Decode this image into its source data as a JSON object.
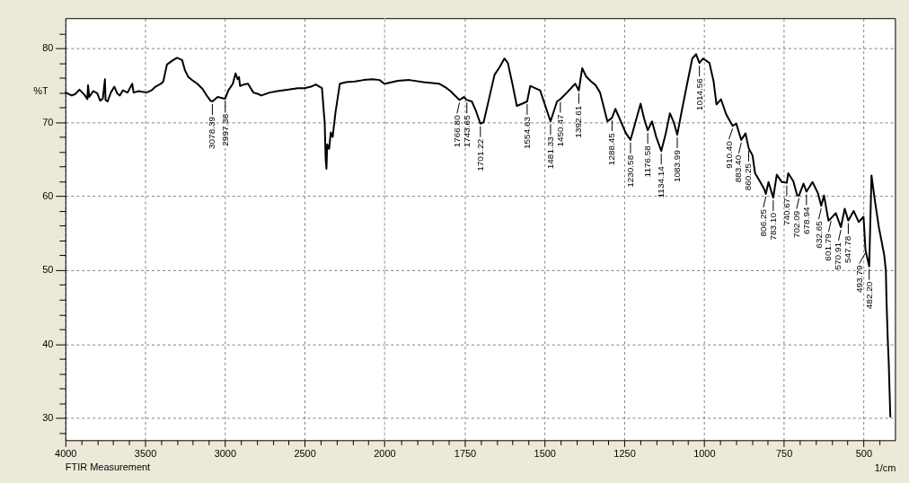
{
  "chart_data": [
    {
      "type": "line",
      "ylabel": "%T",
      "annotations": [
        "FTIR Measurement",
        {
          "text": "3078.39",
          "x": 3078.39,
          "y": 72.8
        },
        {
          "text": "2997.38",
          "x": 2997.38,
          "y": 73.2
        }
      ],
      "x": [
        3998,
        3960,
        3938,
        3912,
        3880,
        3862,
        3858,
        3850,
        3826,
        3800,
        3782,
        3765,
        3752,
        3748,
        3735,
        3715,
        3693,
        3675,
        3659,
        3640,
        3610,
        3581,
        3572,
        3540,
        3492,
        3460,
        3435,
        3400,
        3386,
        3363,
        3324,
        3300,
        3268,
        3250,
        3229,
        3200,
        3173,
        3140,
        3117,
        3090,
        3078.39,
        3045,
        3006,
        2997.38,
        2978,
        2950,
        2933,
        2920,
        2911,
        2905,
        2880,
        2855,
        2821,
        2790,
        2771,
        2720,
        2670,
        2600,
        2542,
        2500,
        2460,
        2430,
        2391,
        2378,
        2374,
        2368,
        2363,
        2358,
        2346,
        2336,
        2324,
        2307,
        2279,
        2240,
        2184,
        2130,
        2072,
        2030,
        2000
      ],
      "series": [
        {
          "color": "#000000",
          "values": [
            74.0,
            73.6,
            73.8,
            74.4,
            73.7,
            73.1,
            75.0,
            73.4,
            74.2,
            73.9,
            72.9,
            73.2,
            75.8,
            73.0,
            72.8,
            74.0,
            74.8,
            73.9,
            73.6,
            74.3,
            74.0,
            75.2,
            74.0,
            74.2,
            74.0,
            74.3,
            74.8,
            75.2,
            75.5,
            77.8,
            78.4,
            78.7,
            78.4,
            77.0,
            76.1,
            75.6,
            75.2,
            74.5,
            73.7,
            72.9,
            72.8,
            73.4,
            73.2,
            73.2,
            74.3,
            75.2,
            76.6,
            75.8,
            76.1,
            74.9,
            75.1,
            75.2,
            74.0,
            73.8,
            73.6,
            74.0,
            74.2,
            74.4,
            74.6,
            74.6,
            74.8,
            75.1,
            74.6,
            71.0,
            70.0,
            65.0,
            63.7,
            67.0,
            66.4,
            68.6,
            68.0,
            71.2,
            75.2,
            75.4,
            75.5,
            75.7,
            75.8,
            75.7,
            75.2
          ]
        }
      ],
      "xlim": [
        4000,
        2000
      ],
      "ylim": [
        27,
        84
      ],
      "xticks": [
        4000,
        {
          "value": 3900,
          "label": null
        },
        {
          "value": 3800,
          "label": null
        },
        {
          "value": 3700,
          "label": null
        },
        {
          "value": 3600,
          "label": null
        },
        3500,
        {
          "value": 3400,
          "label": null
        },
        {
          "value": 3300,
          "label": null
        },
        {
          "value": 3200,
          "label": null
        },
        {
          "value": 3100,
          "label": null
        },
        3000,
        {
          "value": 2900,
          "label": null
        },
        {
          "value": 2800,
          "label": null
        },
        {
          "value": 2700,
          "label": null
        },
        {
          "value": 2600,
          "label": null
        },
        2500,
        {
          "value": 2400,
          "label": null
        },
        {
          "value": 2300,
          "label": null
        },
        {
          "value": 2200,
          "label": null
        },
        {
          "value": 2100,
          "label": null
        },
        2000
      ],
      "yticks": [
        {
          "value": 28,
          "label": null
        },
        30,
        {
          "value": 32,
          "label": null
        },
        {
          "value": 34,
          "label": null
        },
        {
          "value": 36,
          "label": null
        },
        {
          "value": 38,
          "label": null
        },
        40,
        {
          "value": 42,
          "label": null
        },
        {
          "value": 44,
          "label": null
        },
        {
          "value": 46,
          "label": null
        },
        {
          "value": 48,
          "label": null
        },
        50,
        {
          "value": 52,
          "label": null
        },
        {
          "value": 54,
          "label": null
        },
        {
          "value": 56,
          "label": null
        },
        {
          "value": 58,
          "label": null
        },
        60,
        {
          "value": 62,
          "label": null
        },
        {
          "value": 64,
          "label": null
        },
        {
          "value": 66,
          "label": null
        },
        {
          "value": 68,
          "label": null
        },
        70,
        {
          "value": 72,
          "label": null
        },
        {
          "value": 74,
          "label": null
        },
        {
          "value": 76,
          "label": null
        },
        {
          "value": 78,
          "label": null
        },
        80,
        {
          "value": 82,
          "label": null
        }
      ],
      "grid": true
    },
    {
      "type": "line",
      "xlabel": "1/cm",
      "annotations": [
        {
          "text": "1766.80",
          "x": 1766.8,
          "y": 73.0
        },
        {
          "text": "1743.65",
          "x": 1743.65,
          "y": 73.0
        },
        {
          "text": "1701.22",
          "x": 1701.22,
          "y": 69.8
        },
        {
          "text": "1554.63",
          "x": 1554.63,
          "y": 72.8
        },
        {
          "text": "1481.33",
          "x": 1481.33,
          "y": 70.1
        },
        {
          "text": "1450.47",
          "x": 1450.47,
          "y": 73.1
        },
        {
          "text": "1392.61",
          "x": 1392.61,
          "y": 74.3
        },
        {
          "text": "1288.45",
          "x": 1288.45,
          "y": 70.6
        },
        {
          "text": "1230.58",
          "x": 1230.58,
          "y": 67.6
        },
        {
          "text": "1176.58",
          "x": 1176.58,
          "y": 68.9
        },
        {
          "text": "1134.14",
          "x": 1134.14,
          "y": 66.1
        },
        {
          "text": "1083.99",
          "x": 1083.99,
          "y": 68.3
        },
        {
          "text": "1014.56",
          "x": 1014.56,
          "y": 78.0
        },
        {
          "text": "910.40",
          "x": 910.4,
          "y": 69.5
        },
        {
          "text": "883.40",
          "x": 883.4,
          "y": 67.6
        },
        {
          "text": "860.25",
          "x": 860.25,
          "y": 66.5
        },
        {
          "text": "806.25",
          "x": 806.25,
          "y": 60.3
        },
        {
          "text": "783.10",
          "x": 783.1,
          "y": 59.8
        },
        {
          "text": "740.67",
          "x": 740.67,
          "y": 61.8
        },
        {
          "text": "702.09",
          "x": 702.09,
          "y": 60.1
        },
        {
          "text": "678.94",
          "x": 678.94,
          "y": 60.6
        },
        {
          "text": "632.65",
          "x": 632.65,
          "y": 58.7
        },
        {
          "text": "601.79",
          "x": 601.79,
          "y": 57.0
        },
        {
          "text": "570.91",
          "x": 570.91,
          "y": 55.8
        },
        {
          "text": "547.78",
          "x": 547.78,
          "y": 56.7
        },
        {
          "text": "493.79",
          "x": 493.79,
          "y": 52.7
        },
        {
          "text": "482.20",
          "x": 482.2,
          "y": 50.5
        }
      ],
      "x": [
        2000,
        1960,
        1924,
        1880,
        1831,
        1810,
        1795,
        1766.8,
        1753,
        1743.65,
        1728,
        1715,
        1701.22,
        1691,
        1675,
        1657,
        1640,
        1626,
        1615,
        1600,
        1587,
        1570,
        1554.63,
        1545,
        1530,
        1514,
        1500,
        1481.33,
        1461,
        1450.47,
        1430,
        1404,
        1392.61,
        1382,
        1370,
        1354,
        1340,
        1326,
        1303,
        1288.45,
        1278,
        1261,
        1245,
        1230.58,
        1215,
        1199,
        1188,
        1176.58,
        1163,
        1150,
        1134.14,
        1120,
        1107,
        1095,
        1083.99,
        1070,
        1053,
        1037,
        1025,
        1014.56,
        1003,
        983,
        970,
        961,
        947,
        930,
        910.4,
        899,
        883.4,
        870,
        860.25,
        848,
        840,
        825,
        812,
        806.25,
        798,
        783.1,
        772,
        756,
        740.67,
        736,
        720,
        708,
        702.09,
        688,
        678.94,
        660,
        643,
        632.65,
        624,
        610,
        601.79,
        587,
        570.91,
        559,
        547.78,
        531,
        515,
        500,
        493.79,
        482.2,
        475,
        466,
        452,
        443,
        435,
        430,
        428,
        424,
        421,
        416
      ],
      "series": [
        {
          "color": "#000000",
          "values": [
            75.2,
            75.6,
            75.7,
            75.4,
            75.2,
            74.7,
            74.2,
            73.0,
            73.4,
            73.0,
            72.8,
            71.5,
            69.8,
            70.0,
            73.0,
            76.4,
            77.5,
            78.6,
            78.0,
            75.0,
            72.2,
            72.5,
            72.8,
            74.9,
            74.6,
            74.3,
            72.5,
            70.1,
            72.8,
            73.1,
            74.0,
            75.2,
            74.3,
            77.3,
            76.2,
            75.5,
            75.0,
            74.0,
            70.1,
            70.6,
            71.8,
            70.1,
            68.5,
            67.6,
            70.0,
            72.5,
            70.5,
            68.9,
            70.1,
            68.0,
            66.1,
            68.5,
            71.2,
            70.0,
            68.3,
            71.5,
            75.2,
            78.6,
            79.2,
            78.0,
            78.6,
            78.0,
            75.5,
            72.4,
            73.1,
            71.0,
            69.5,
            69.8,
            67.6,
            68.5,
            66.5,
            65.5,
            63.1,
            62.0,
            61.0,
            60.3,
            61.9,
            59.8,
            62.9,
            61.9,
            61.8,
            63.1,
            62.0,
            60.1,
            60.1,
            61.7,
            60.6,
            61.9,
            60.4,
            58.7,
            60.1,
            56.7,
            57.0,
            57.7,
            55.8,
            58.3,
            56.7,
            58.0,
            56.5,
            57.2,
            52.7,
            50.5,
            62.8,
            59.9,
            55.8,
            53.8,
            52.0,
            49.9,
            45.9,
            40.6,
            37.5,
            30.2
          ]
        }
      ],
      "xlim": [
        2000,
        400
      ],
      "ylim": [
        27,
        84
      ],
      "xticks": [
        {
          "value": 1950,
          "label": null
        },
        {
          "value": 1900,
          "label": null
        },
        {
          "value": 1850,
          "label": null
        },
        {
          "value": 1800,
          "label": null
        },
        1750,
        {
          "value": 1700,
          "label": null
        },
        {
          "value": 1650,
          "label": null
        },
        {
          "value": 1600,
          "label": null
        },
        {
          "value": 1550,
          "label": null
        },
        1500,
        {
          "value": 1450,
          "label": null
        },
        {
          "value": 1400,
          "label": null
        },
        {
          "value": 1350,
          "label": null
        },
        {
          "value": 1300,
          "label": null
        },
        1250,
        {
          "value": 1200,
          "label": null
        },
        {
          "value": 1150,
          "label": null
        },
        {
          "value": 1100,
          "label": null
        },
        {
          "value": 1050,
          "label": null
        },
        1000,
        {
          "value": 950,
          "label": null
        },
        {
          "value": 900,
          "label": null
        },
        {
          "value": 850,
          "label": null
        },
        {
          "value": 800,
          "label": null
        },
        750,
        {
          "value": 700,
          "label": null
        },
        {
          "value": 650,
          "label": null
        },
        {
          "value": 600,
          "label": null
        },
        {
          "value": 550,
          "label": null
        },
        500,
        {
          "value": 450,
          "label": null
        }
      ],
      "yticks": [
        30,
        40,
        50,
        60,
        70,
        80
      ],
      "grid": true,
      "tick_labels": "x"
    }
  ]
}
